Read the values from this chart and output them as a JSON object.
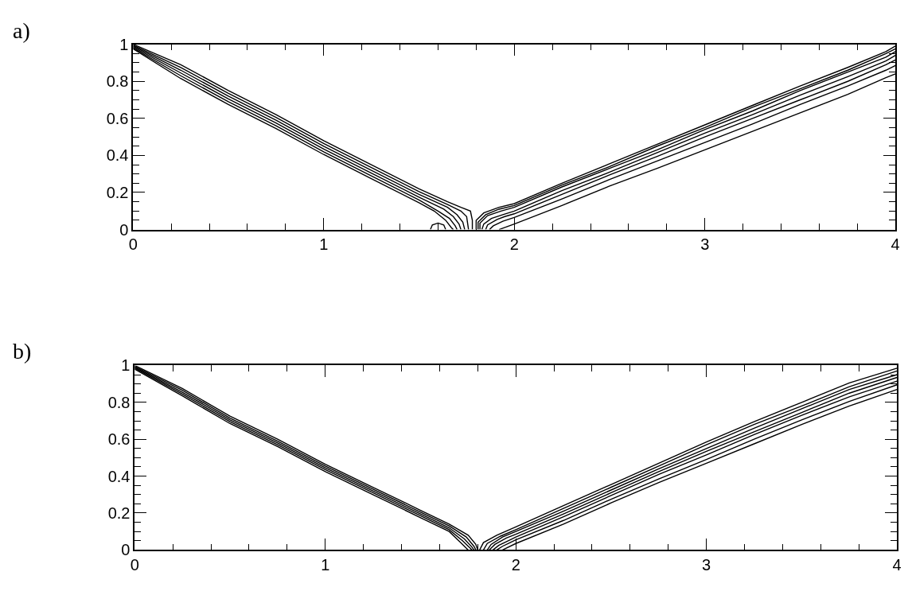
{
  "chart_data": [
    {
      "type": "line",
      "title": "a)",
      "xlim": [
        0,
        4
      ],
      "ylim": [
        0,
        1
      ],
      "xticks": [
        0,
        {
          "value": 0.2,
          "label": null
        },
        {
          "value": 0.4,
          "label": null
        },
        {
          "value": 0.6,
          "label": null
        },
        {
          "value": 0.8,
          "label": null
        },
        1,
        {
          "value": 1.2,
          "label": null
        },
        {
          "value": 1.4,
          "label": null
        },
        {
          "value": 1.6,
          "label": null
        },
        {
          "value": 1.8,
          "label": null
        },
        2,
        {
          "value": 2.2,
          "label": null
        },
        {
          "value": 2.4,
          "label": null
        },
        {
          "value": 2.6,
          "label": null
        },
        {
          "value": 2.8,
          "label": null
        },
        3,
        {
          "value": 3.2,
          "label": null
        },
        {
          "value": 3.4,
          "label": null
        },
        {
          "value": 3.6,
          "label": null
        },
        {
          "value": 3.8,
          "label": null
        },
        4
      ],
      "yticks": [
        0,
        {
          "value": 0.05,
          "label": null
        },
        {
          "value": 0.1,
          "label": null
        },
        {
          "value": 0.15,
          "label": null
        },
        0.2,
        {
          "value": 0.25,
          "label": null
        },
        {
          "value": 0.3,
          "label": null
        },
        {
          "value": 0.35,
          "label": null
        },
        0.4,
        {
          "value": 0.45,
          "label": null
        },
        {
          "value": 0.5,
          "label": null
        },
        {
          "value": 0.55,
          "label": null
        },
        0.6,
        {
          "value": 0.65,
          "label": null
        },
        {
          "value": 0.7,
          "label": null
        },
        {
          "value": 0.75,
          "label": null
        },
        0.8,
        {
          "value": 0.85,
          "label": null
        },
        {
          "value": 0.9,
          "label": null
        },
        {
          "value": 0.95,
          "label": null
        },
        1
      ],
      "series": [
        {
          "color": "#000000",
          "x": [
            0,
            0.25,
            0.5,
            0.75,
            1.0,
            1.25,
            1.5,
            1.65,
            1.72,
            1.77,
            1.78,
            1.78
          ],
          "values": [
            1.0,
            0.89,
            0.75,
            0.62,
            0.48,
            0.35,
            0.22,
            0.15,
            0.12,
            0.1,
            0.05,
            0.0
          ]
        },
        {
          "color": "#000000",
          "x": [
            0,
            0.25,
            0.5,
            0.75,
            1.0,
            1.25,
            1.5,
            1.65,
            1.72,
            1.75,
            1.76
          ],
          "values": [
            0.995,
            0.875,
            0.735,
            0.605,
            0.465,
            0.335,
            0.205,
            0.135,
            0.1,
            0.07,
            0.0
          ]
        },
        {
          "color": "#000000",
          "x": [
            0,
            0.25,
            0.5,
            0.75,
            1.0,
            1.25,
            1.5,
            1.65,
            1.7,
            1.73,
            1.74
          ],
          "values": [
            0.99,
            0.86,
            0.72,
            0.59,
            0.45,
            0.32,
            0.19,
            0.12,
            0.08,
            0.04,
            0.0
          ]
        },
        {
          "color": "#000000",
          "x": [
            0,
            0.25,
            0.5,
            0.75,
            1.0,
            1.25,
            1.5,
            1.63,
            1.68,
            1.71,
            1.72
          ],
          "values": [
            0.985,
            0.845,
            0.705,
            0.575,
            0.435,
            0.305,
            0.175,
            0.11,
            0.07,
            0.03,
            0.0
          ]
        },
        {
          "color": "#000000",
          "x": [
            0,
            0.25,
            0.5,
            0.75,
            1.0,
            1.25,
            1.5,
            1.6,
            1.66,
            1.69,
            1.7
          ],
          "values": [
            0.98,
            0.83,
            0.69,
            0.56,
            0.42,
            0.29,
            0.16,
            0.1,
            0.06,
            0.02,
            0.0
          ]
        },
        {
          "color": "#000000",
          "x": [
            0,
            0.25,
            0.5,
            0.75,
            1.0,
            1.25,
            1.5,
            1.58,
            1.64,
            1.67,
            1.68
          ],
          "values": [
            0.975,
            0.815,
            0.675,
            0.545,
            0.405,
            0.275,
            0.145,
            0.1,
            0.05,
            0.01,
            0.0
          ]
        },
        {
          "color": "#000000",
          "x": [
            1.56,
            1.57,
            1.6,
            1.63,
            1.64
          ],
          "values": [
            0,
            0.025,
            0.035,
            0.025,
            0
          ]
        },
        {
          "color": "#000000",
          "x": [
            1.8,
            1.8,
            1.84,
            1.92,
            2.0,
            2.25,
            2.5,
            2.75,
            3.0,
            3.25,
            3.5,
            3.75,
            3.95,
            4.0
          ],
          "values": [
            0,
            0.05,
            0.09,
            0.12,
            0.14,
            0.25,
            0.355,
            0.46,
            0.565,
            0.67,
            0.775,
            0.875,
            0.96,
            0.99
          ]
        },
        {
          "color": "#000000",
          "x": [
            1.81,
            1.81,
            1.85,
            1.92,
            2.0,
            2.25,
            2.5,
            2.75,
            3.0,
            3.25,
            3.5,
            3.75,
            3.95,
            4.0
          ],
          "values": [
            0,
            0.04,
            0.08,
            0.11,
            0.13,
            0.24,
            0.34,
            0.45,
            0.55,
            0.66,
            0.76,
            0.86,
            0.95,
            0.975
          ]
        },
        {
          "color": "#000000",
          "x": [
            1.82,
            1.82,
            1.86,
            1.93,
            2.0,
            2.25,
            2.5,
            2.75,
            3.0,
            3.25,
            3.5,
            3.75,
            3.95,
            4.0
          ],
          "values": [
            0,
            0.035,
            0.075,
            0.1,
            0.12,
            0.23,
            0.33,
            0.43,
            0.54,
            0.64,
            0.75,
            0.85,
            0.93,
            0.96
          ]
        },
        {
          "color": "#000000",
          "x": [
            1.83,
            1.84,
            1.88,
            1.94,
            2.0,
            2.25,
            2.5,
            2.75,
            3.0,
            3.25,
            3.5,
            3.75,
            3.95,
            4.0
          ],
          "values": [
            0,
            0.03,
            0.06,
            0.08,
            0.1,
            0.21,
            0.31,
            0.415,
            0.52,
            0.62,
            0.725,
            0.825,
            0.91,
            0.94
          ]
        },
        {
          "color": "#000000",
          "x": [
            1.85,
            1.86,
            1.91,
            1.95,
            2.0,
            2.25,
            2.5,
            2.75,
            3.0,
            3.25,
            3.5,
            3.75,
            3.95,
            4.0
          ],
          "values": [
            0,
            0.025,
            0.055,
            0.07,
            0.085,
            0.19,
            0.295,
            0.395,
            0.5,
            0.6,
            0.7,
            0.8,
            0.89,
            0.915
          ]
        },
        {
          "color": "#000000",
          "x": [
            1.87,
            1.89,
            1.94,
            2.0,
            2.25,
            2.5,
            2.75,
            3.0,
            3.25,
            3.5,
            3.75,
            3.95,
            4.0
          ],
          "values": [
            0,
            0.02,
            0.045,
            0.065,
            0.165,
            0.27,
            0.37,
            0.47,
            0.57,
            0.675,
            0.775,
            0.86,
            0.885
          ]
        },
        {
          "color": "#000000",
          "x": [
            1.92,
            1.96,
            2.0,
            2.25,
            2.5,
            2.75,
            3.0,
            3.25,
            3.5,
            3.75,
            3.95,
            4.0
          ],
          "values": [
            0,
            0.015,
            0.03,
            0.13,
            0.235,
            0.33,
            0.43,
            0.53,
            0.63,
            0.73,
            0.82,
            0.84
          ]
        }
      ]
    },
    {
      "type": "line",
      "title": "b)",
      "xlim": [
        0,
        4
      ],
      "ylim": [
        0,
        1
      ],
      "xticks": [
        0,
        {
          "value": 0.2,
          "label": null
        },
        {
          "value": 0.4,
          "label": null
        },
        {
          "value": 0.6,
          "label": null
        },
        {
          "value": 0.8,
          "label": null
        },
        1,
        {
          "value": 1.2,
          "label": null
        },
        {
          "value": 1.4,
          "label": null
        },
        {
          "value": 1.6,
          "label": null
        },
        {
          "value": 1.8,
          "label": null
        },
        2,
        {
          "value": 2.2,
          "label": null
        },
        {
          "value": 2.4,
          "label": null
        },
        {
          "value": 2.6,
          "label": null
        },
        {
          "value": 2.8,
          "label": null
        },
        3,
        {
          "value": 3.2,
          "label": null
        },
        {
          "value": 3.4,
          "label": null
        },
        {
          "value": 3.6,
          "label": null
        },
        {
          "value": 3.8,
          "label": null
        },
        4
      ],
      "yticks": [
        0,
        {
          "value": 0.05,
          "label": null
        },
        {
          "value": 0.1,
          "label": null
        },
        {
          "value": 0.15,
          "label": null
        },
        0.2,
        {
          "value": 0.25,
          "label": null
        },
        {
          "value": 0.3,
          "label": null
        },
        {
          "value": 0.35,
          "label": null
        },
        0.4,
        {
          "value": 0.45,
          "label": null
        },
        {
          "value": 0.5,
          "label": null
        },
        {
          "value": 0.55,
          "label": null
        },
        0.6,
        {
          "value": 0.65,
          "label": null
        },
        {
          "value": 0.7,
          "label": null
        },
        {
          "value": 0.75,
          "label": null
        },
        0.8,
        {
          "value": 0.85,
          "label": null
        },
        {
          "value": 0.9,
          "label": null
        },
        {
          "value": 0.95,
          "label": null
        },
        1
      ],
      "series": [
        {
          "color": "#000000",
          "x": [
            0,
            0.25,
            0.5,
            0.75,
            1.0,
            1.25,
            1.5,
            1.65,
            1.75,
            1.79,
            1.8
          ],
          "values": [
            1.0,
            0.875,
            0.725,
            0.6,
            0.465,
            0.34,
            0.215,
            0.14,
            0.08,
            0.03,
            0.0
          ]
        },
        {
          "color": "#000000",
          "x": [
            0,
            0.25,
            0.5,
            0.75,
            1.0,
            1.25,
            1.5,
            1.65,
            1.74,
            1.78,
            1.79
          ],
          "values": [
            0.995,
            0.865,
            0.715,
            0.59,
            0.455,
            0.33,
            0.205,
            0.13,
            0.07,
            0.02,
            0.0
          ]
        },
        {
          "color": "#000000",
          "x": [
            0,
            0.25,
            0.5,
            0.75,
            1.0,
            1.25,
            1.5,
            1.65,
            1.73,
            1.77,
            1.78
          ],
          "values": [
            0.99,
            0.855,
            0.705,
            0.58,
            0.445,
            0.32,
            0.195,
            0.12,
            0.06,
            0.015,
            0.0
          ]
        },
        {
          "color": "#000000",
          "x": [
            0,
            0.25,
            0.5,
            0.75,
            1.0,
            1.25,
            1.5,
            1.65,
            1.72,
            1.76,
            1.77
          ],
          "values": [
            0.985,
            0.845,
            0.695,
            0.57,
            0.435,
            0.31,
            0.185,
            0.11,
            0.05,
            0.01,
            0.0
          ]
        },
        {
          "color": "#000000",
          "x": [
            0,
            0.25,
            0.5,
            0.75,
            1.0,
            1.25,
            1.5,
            1.65,
            1.71,
            1.75
          ],
          "values": [
            0.98,
            0.835,
            0.685,
            0.56,
            0.425,
            0.3,
            0.175,
            0.1,
            0.04,
            0.0
          ]
        },
        {
          "color": "#000000",
          "x": [
            1.81,
            1.83,
            1.9,
            2.0,
            2.25,
            2.5,
            2.75,
            3.0,
            3.25,
            3.5,
            3.75,
            4.0
          ],
          "values": [
            0,
            0.04,
            0.08,
            0.125,
            0.24,
            0.355,
            0.47,
            0.585,
            0.695,
            0.8,
            0.905,
            0.985
          ]
        },
        {
          "color": "#000000",
          "x": [
            1.83,
            1.85,
            1.92,
            2.0,
            2.25,
            2.5,
            2.75,
            3.0,
            3.25,
            3.5,
            3.75,
            4.0
          ],
          "values": [
            0,
            0.035,
            0.075,
            0.11,
            0.225,
            0.34,
            0.455,
            0.57,
            0.68,
            0.78,
            0.885,
            0.97
          ]
        },
        {
          "color": "#000000",
          "x": [
            1.85,
            1.87,
            1.93,
            2.0,
            2.25,
            2.5,
            2.75,
            3.0,
            3.25,
            3.5,
            3.75,
            4.0
          ],
          "values": [
            0,
            0.03,
            0.07,
            0.1,
            0.21,
            0.325,
            0.44,
            0.55,
            0.66,
            0.765,
            0.87,
            0.95
          ]
        },
        {
          "color": "#000000",
          "x": [
            1.86,
            1.89,
            1.95,
            2.0,
            2.25,
            2.5,
            2.75,
            3.0,
            3.25,
            3.5,
            3.75,
            4.0
          ],
          "values": [
            0,
            0.03,
            0.065,
            0.085,
            0.195,
            0.31,
            0.425,
            0.535,
            0.64,
            0.745,
            0.85,
            0.935
          ]
        },
        {
          "color": "#000000",
          "x": [
            1.88,
            1.91,
            1.96,
            2.0,
            2.25,
            2.5,
            2.75,
            3.0,
            3.25,
            3.5,
            3.75,
            4.0
          ],
          "values": [
            0,
            0.025,
            0.05,
            0.07,
            0.18,
            0.295,
            0.41,
            0.515,
            0.625,
            0.73,
            0.83,
            0.915
          ]
        },
        {
          "color": "#000000",
          "x": [
            1.9,
            1.93,
            1.97,
            2.0,
            2.25,
            2.5,
            2.75,
            3.0,
            3.25,
            3.5,
            3.75,
            4.0
          ],
          "values": [
            0,
            0.02,
            0.04,
            0.055,
            0.16,
            0.275,
            0.385,
            0.49,
            0.6,
            0.705,
            0.805,
            0.895
          ]
        },
        {
          "color": "#000000",
          "x": [
            1.93,
            2.0,
            2.25,
            2.5,
            2.75,
            3.0,
            3.25,
            3.5,
            3.75,
            4.0
          ],
          "values": [
            0,
            0.035,
            0.14,
            0.255,
            0.365,
            0.47,
            0.575,
            0.68,
            0.78,
            0.87
          ]
        }
      ]
    }
  ]
}
